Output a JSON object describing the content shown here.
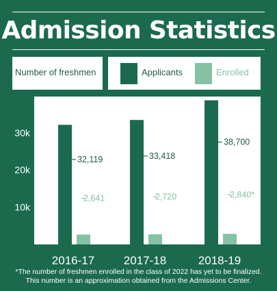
{
  "title": "Admission Statistics",
  "ylabel": "Number of freshmen",
  "legend": [
    {
      "label": "Applicants",
      "color": "#1c6a4e"
    },
    {
      "label": "Enrolled",
      "color": "#84c2a3"
    }
  ],
  "colors": {
    "background": "#1c6a4e",
    "applicants": "#1c6a4e",
    "enrolled": "#84c2a3",
    "plot_bg": "#ffffff",
    "applicant_text": "#1f5b45",
    "enrolled_text": "#84c2a3"
  },
  "footnote": {
    "line1": "*The number of freshmen enrolled in the class of 2022 has yet to be finalized.",
    "line2": "This number is an approximation obtained from the Admissions Center."
  },
  "chart_data": {
    "type": "bar",
    "title": "Admission Statistics",
    "ylabel": "Number of freshmen",
    "categories": [
      "2016-17",
      "2017-18",
      "2018-19"
    ],
    "series": [
      {
        "name": "Applicants",
        "values": [
          32119,
          33418,
          38700
        ],
        "labels": [
          "32,119",
          "33,418",
          "38,700"
        ]
      },
      {
        "name": "Enrolled",
        "values": [
          2641,
          2720,
          2840
        ],
        "labels": [
          "2,641",
          "2,720",
          "2,840*"
        ]
      }
    ],
    "yticks": [
      "10k",
      "20k",
      "30k"
    ],
    "ytick_values": [
      10000,
      20000,
      30000
    ],
    "ylim": [
      0,
      38700
    ],
    "legend_position": "top"
  }
}
